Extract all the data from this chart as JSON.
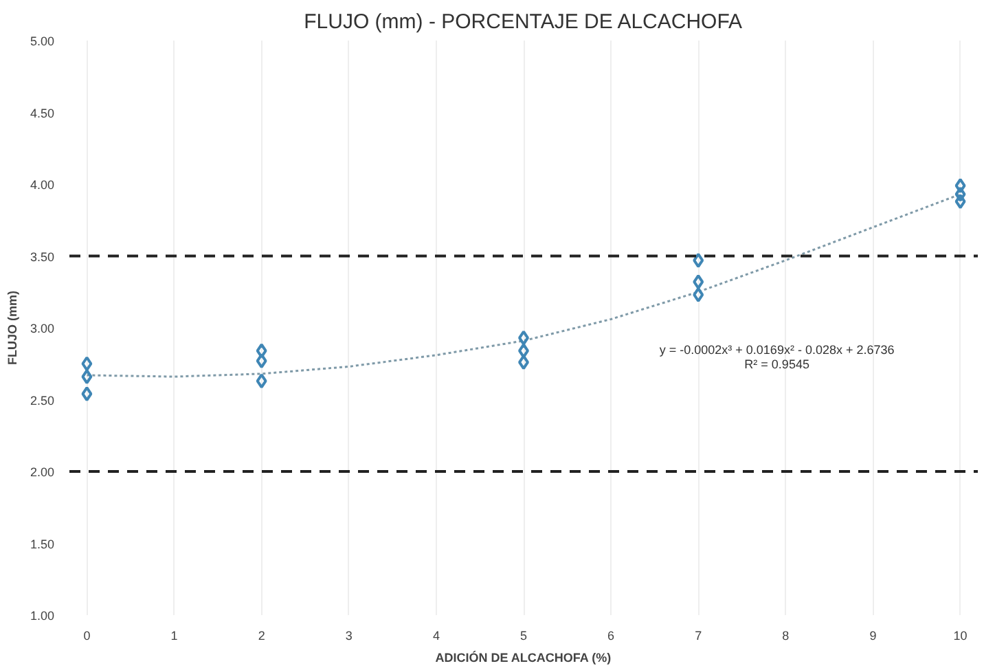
{
  "chart_data": {
    "type": "scatter",
    "title": "FLUJO (mm) - PORCENTAJE DE ALCACHOFA",
    "xlabel": "ADICIÓN DE ALCACHOFA (%)",
    "ylabel": "FLUJO (mm)",
    "xlim": [
      -0.2,
      10.2
    ],
    "xticks": [
      0,
      1,
      2,
      3,
      4,
      5,
      6,
      7,
      8,
      9,
      10
    ],
    "ylim": [
      1.0,
      5.0
    ],
    "yticks": [
      {
        "value": 1.0,
        "label": "1.00"
      },
      {
        "value": 1.5,
        "label": "1.50"
      },
      {
        "value": 2.0,
        "label": "2.00"
      },
      {
        "value": 2.5,
        "label": "2.50"
      },
      {
        "value": 3.0,
        "label": "3.00"
      },
      {
        "value": 3.5,
        "label": "3.50"
      },
      {
        "value": 4.0,
        "label": "4.00"
      },
      {
        "value": 4.5,
        "label": "4.50"
      },
      {
        "value": 5.0,
        "label": "5.00"
      }
    ],
    "grid": "x",
    "series": [
      {
        "type": "line",
        "color": "#7f9aa8",
        "line_style": "dotted",
        "marker": "none",
        "x": [
          0,
          1,
          2,
          3,
          4,
          5,
          6,
          7,
          8,
          9,
          10
        ],
        "values": [
          2.67,
          2.66,
          2.68,
          2.73,
          2.81,
          2.91,
          3.06,
          3.25,
          3.47,
          3.7,
          3.93
        ]
      },
      {
        "color": "#3f86b5",
        "marker": "diamond",
        "x": [
          0,
          0,
          0,
          2,
          2,
          2,
          5,
          5,
          5,
          7,
          7,
          7,
          10,
          10,
          10
        ],
        "values": [
          2.75,
          2.66,
          2.54,
          2.84,
          2.77,
          2.63,
          2.93,
          2.84,
          2.76,
          3.47,
          3.32,
          3.23,
          3.99,
          3.93,
          3.88
        ]
      }
    ],
    "ref_lines": [
      {
        "axis": "y",
        "value": 3.5,
        "color": "#222222",
        "line_style": "dashed"
      },
      {
        "axis": "y",
        "value": 2.0,
        "color": "#222222",
        "line_style": "dashed"
      }
    ],
    "annotations": [
      "y = -0.0002x³ + 0.0169x² - 0.028x + 2.6736",
      "R² = 0.9545"
    ]
  }
}
